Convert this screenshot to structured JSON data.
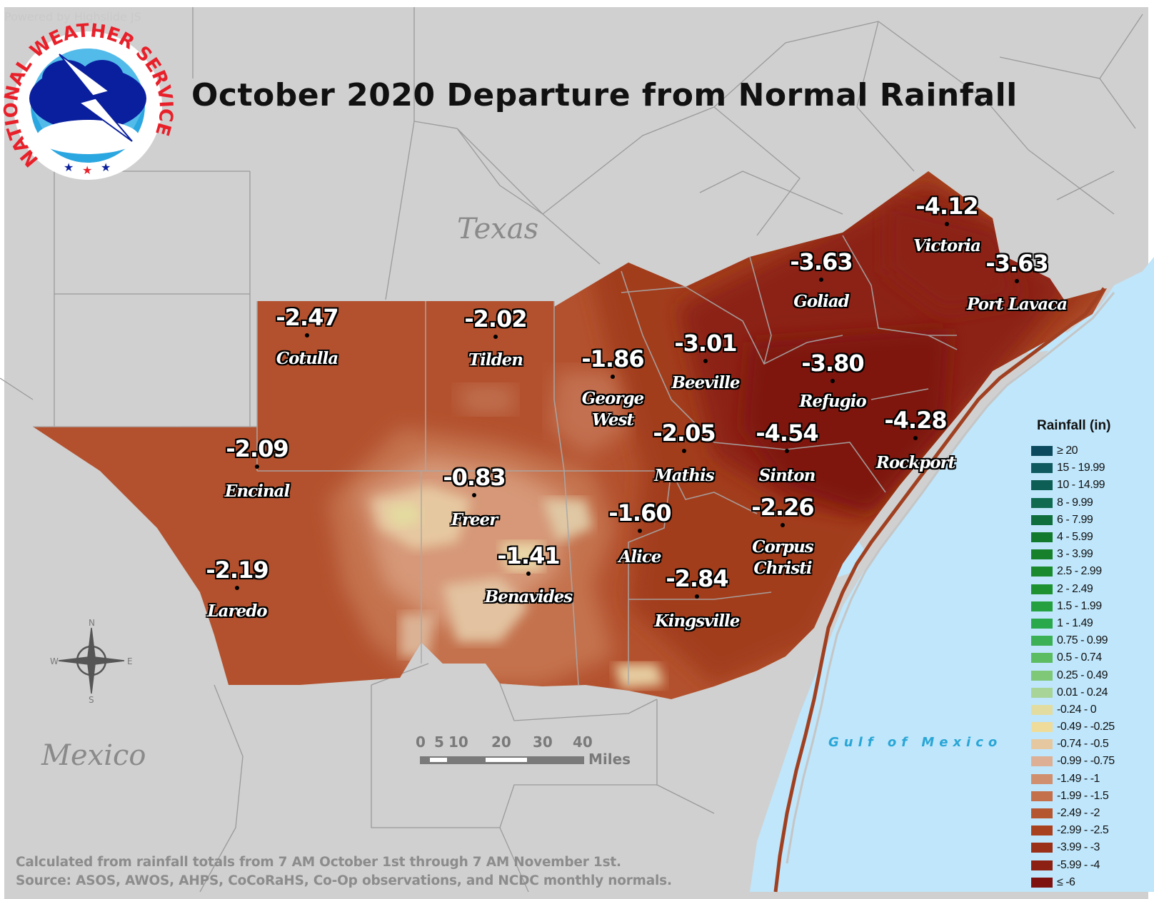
{
  "watermark": "Powered by Highslide JS",
  "title": "October 2020 Departure from Normal Rainfall",
  "logo": {
    "ring_text": "NATIONAL WEATHER SERVICE",
    "colors": {
      "ring": "#e8202a",
      "sky": "#2aa6e0",
      "cloud": "#0a1f9e"
    }
  },
  "labels": {
    "texas": "Texas",
    "mexico": "Mexico",
    "gulf": "Gulf of Mexico"
  },
  "stations": [
    {
      "name": "Victoria",
      "value": "-4.12"
    },
    {
      "name": "Goliad",
      "value": "-3.63"
    },
    {
      "name": "Port Lavaca",
      "value": "-3.63"
    },
    {
      "name": "Cotulla",
      "value": "-2.47"
    },
    {
      "name": "Tilden",
      "value": "-2.02"
    },
    {
      "name": "Beeville",
      "value": "-3.01"
    },
    {
      "name": "George West",
      "value": "-1.86"
    },
    {
      "name": "Refugio",
      "value": "-3.80"
    },
    {
      "name": "Rockport",
      "value": "-4.28"
    },
    {
      "name": "Encinal",
      "value": "-2.09"
    },
    {
      "name": "Mathis",
      "value": "-2.05"
    },
    {
      "name": "Sinton",
      "value": "-4.54"
    },
    {
      "name": "Freer",
      "value": "-0.83"
    },
    {
      "name": "Alice",
      "value": "-1.60"
    },
    {
      "name": "Corpus Christi",
      "value": "-2.26"
    },
    {
      "name": "Benavides",
      "value": "-1.41"
    },
    {
      "name": "Laredo",
      "value": "-2.19"
    },
    {
      "name": "Kingsville",
      "value": "-2.84"
    }
  ],
  "legend": {
    "title": "Rainfall (in)",
    "items": [
      {
        "label": "≥ 20",
        "color": "#0b4a5e"
      },
      {
        "label": "15 - 19.99",
        "color": "#0e5a5e"
      },
      {
        "label": "10 - 14.99",
        "color": "#0d5e55"
      },
      {
        "label": "8 - 9.99",
        "color": "#0f6a50"
      },
      {
        "label": "6 - 7.99",
        "color": "#0e6e3c"
      },
      {
        "label": "4 - 5.99",
        "color": "#127a2c"
      },
      {
        "label": "3 - 3.99",
        "color": "#16802a"
      },
      {
        "label": "2.5 - 2.99",
        "color": "#1a8a2e"
      },
      {
        "label": "2 - 2.49",
        "color": "#1e9230"
      },
      {
        "label": "1.5 - 1.99",
        "color": "#24a040"
      },
      {
        "label": "1 - 1.49",
        "color": "#2aa84c"
      },
      {
        "label": "0.75 - 0.99",
        "color": "#3cb054"
      },
      {
        "label": "0.5 - 0.74",
        "color": "#5cbc62"
      },
      {
        "label": "0.25 - 0.49",
        "color": "#7ec878"
      },
      {
        "label": "0.01 - 0.24",
        "color": "#a8d498"
      },
      {
        "label": "-0.24 - 0",
        "color": "#e2dca0"
      },
      {
        "label": "-0.49 - -0.25",
        "color": "#efdc9a"
      },
      {
        "label": "-0.74 - -0.5",
        "color": "#e6c8a0"
      },
      {
        "label": "-0.99 - -0.75",
        "color": "#ddb096"
      },
      {
        "label": "-1.49 - -1",
        "color": "#d09070"
      },
      {
        "label": "-1.99 - -1.5",
        "color": "#c4704a"
      },
      {
        "label": "-2.49 - -2",
        "color": "#b45630"
      },
      {
        "label": "-2.99 - -2.5",
        "color": "#a8421e"
      },
      {
        "label": "-3.99 - -3",
        "color": "#9a3018"
      },
      {
        "label": "-5.99 - -4",
        "color": "#8c2012"
      },
      {
        "label": "≤ -6",
        "color": "#7e120e"
      }
    ]
  },
  "scale_bar": {
    "ticks": [
      "0",
      "5",
      "10",
      "20",
      "30",
      "40"
    ],
    "unit": "Miles"
  },
  "compass": {
    "n": "N",
    "s": "S",
    "e": "E",
    "w": "W"
  },
  "footer": [
    "Calculated from rainfall totals from 7 AM October 1st through 7 AM November 1st.",
    "Source: ASOS, AWOS, AHPS, CoCoRaHS, Co-Op observations, and NCDC monthly normals."
  ]
}
